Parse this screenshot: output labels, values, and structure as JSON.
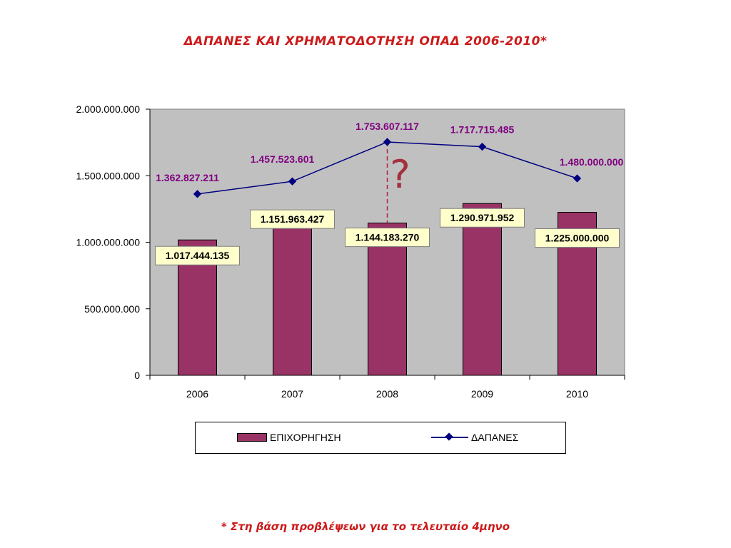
{
  "title": "ΔΑΠΑΝΕΣ ΚΑΙ ΧΡΗΜΑΤΟΔΟΤΗΣΗ ΟΠΑΔ 2006-2010*",
  "footnote": "* Στη βάση προβλέψεων για το τελευταίο 4μηνο",
  "annotation": "?",
  "legend": {
    "bar_label": "ΕΠΙΧΟΡΗΓΗΣΗ",
    "line_label": "ΔΑΠΑΝΕΣ"
  },
  "colors": {
    "bar": "#993366",
    "line": "#000080",
    "line_labels": "#800080",
    "plot_bg": "#c0c0c0",
    "title": "#cc1a1a",
    "label_box": "#ffffcc"
  },
  "chart_data": {
    "type": "bar",
    "categories": [
      "2006",
      "2007",
      "2008",
      "2009",
      "2010"
    ],
    "series": [
      {
        "name": "ΕΠΙΧΟΡΗΓΗΣΗ",
        "type": "bar",
        "values": [
          1017444135,
          1151963427,
          1144183270,
          1290971952,
          1225000000
        ],
        "labels": [
          "1.017.444.135",
          "1.151.963.427",
          "1.144.183.270",
          "1.290.971.952",
          "1.225.000.000"
        ]
      },
      {
        "name": "ΔΑΠΑΝΕΣ",
        "type": "line",
        "values": [
          1362827211,
          1457523601,
          1753607117,
          1717715485,
          1480000000
        ],
        "labels": [
          "1.362.827.211",
          "1.457.523.601",
          "1.753.607.117",
          "1.717.715.485",
          "1.480.000.000"
        ]
      }
    ],
    "yticks": [
      0,
      500000000,
      1000000000,
      1500000000,
      2000000000
    ],
    "ytick_labels": [
      "0",
      "500.000.000",
      "1.000.000.000",
      "1.500.000.000",
      "2.000.000.000"
    ],
    "ylim": [
      0,
      2000000000
    ],
    "xlabel": "",
    "ylabel": "",
    "grid": false,
    "legend_position": "bottom"
  }
}
